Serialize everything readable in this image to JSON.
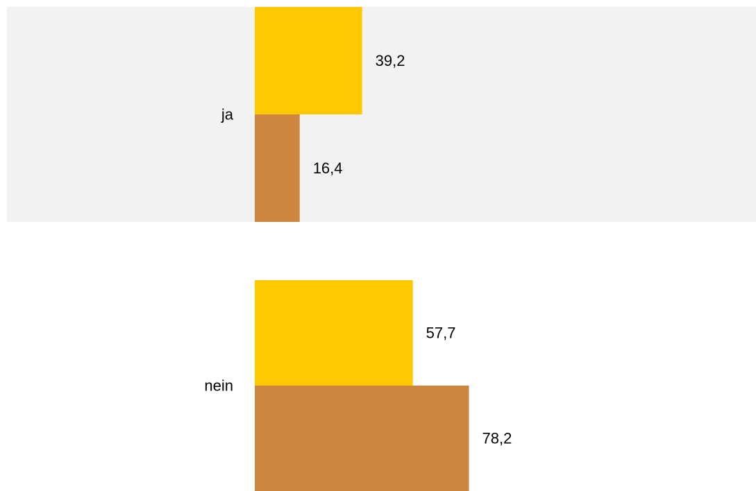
{
  "chart_data": {
    "type": "bar",
    "orientation": "horizontal",
    "title": "",
    "xlabel": "",
    "ylabel": "",
    "categories": [
      "ja",
      "nein"
    ],
    "series": [
      {
        "values": [
          39.2,
          57.7
        ],
        "color": "#FFC800"
      },
      {
        "values": [
          16.4,
          78.2
        ],
        "color": "#CD853F"
      }
    ],
    "value_labels": [
      [
        "39,2",
        "57,7"
      ],
      [
        "16,4",
        "78,2"
      ]
    ],
    "xlim": [
      0,
      100
    ],
    "grid": false,
    "legend": "none",
    "band_color": "#F2F2F2"
  }
}
